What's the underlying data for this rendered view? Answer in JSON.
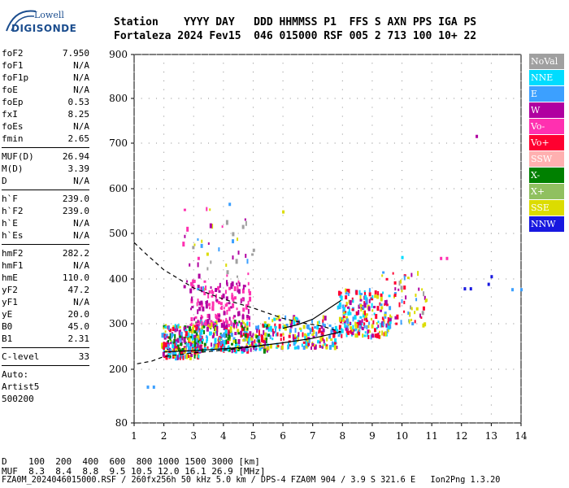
{
  "logo": {
    "top": "Lowell",
    "bottom": "DIGISONDE"
  },
  "header": {
    "labels": "Station    YYYY DAY   DDD HHMMSS P1  FFS S AXN PPS IGA PS",
    "values": "Fortaleza 2024 Fev15  046 015000 RSF 005 2 713 100 10+ 22"
  },
  "params": [
    {
      "name": "foF2",
      "value": "7.950"
    },
    {
      "name": "foF1",
      "value": "N/A"
    },
    {
      "name": "foF1p",
      "value": "N/A"
    },
    {
      "name": "foE",
      "value": "N/A"
    },
    {
      "name": "foEp",
      "value": "0.53"
    },
    {
      "name": "fxI",
      "value": "8.25"
    },
    {
      "name": "foEs",
      "value": "N/A"
    },
    {
      "name": "fmin",
      "value": "2.65"
    },
    {
      "name": "MUF(D)",
      "value": "26.94",
      "sep_before": true
    },
    {
      "name": "M(D)",
      "value": "3.39"
    },
    {
      "name": "D",
      "value": "N/A"
    },
    {
      "name": "h`F",
      "value": "239.0",
      "sep_before": true
    },
    {
      "name": "h`F2",
      "value": "239.0"
    },
    {
      "name": "h`E",
      "value": "N/A"
    },
    {
      "name": "h`Es",
      "value": "N/A"
    },
    {
      "name": "hmF2",
      "value": "282.2",
      "sep_before": true
    },
    {
      "name": "hmF1",
      "value": "N/A"
    },
    {
      "name": "hmE",
      "value": "110.0"
    },
    {
      "name": "yF2",
      "value": "47.2"
    },
    {
      "name": "yF1",
      "value": "N/A"
    },
    {
      "name": "yE",
      "value": "20.0"
    },
    {
      "name": "B0",
      "value": "45.0"
    },
    {
      "name": "B1",
      "value": "2.31"
    },
    {
      "name": "C-level",
      "value": "33",
      "sep_before": true
    }
  ],
  "autoscaling": {
    "line1": "Auto:",
    "line2": "Artist5",
    "line3": "500200"
  },
  "legend": [
    {
      "label": "NoVal",
      "color": "#a0a0a0"
    },
    {
      "label": "NNE",
      "color": "#00dcff"
    },
    {
      "label": "E",
      "color": "#3ca0ff"
    },
    {
      "label": "W",
      "color": "#b000a0"
    },
    {
      "label": "Vo-",
      "color": "#ff30b0"
    },
    {
      "label": "Vo+",
      "color": "#ff0030"
    },
    {
      "label": "SSW",
      "color": "#ffb0b0"
    },
    {
      "label": "X-",
      "color": "#008000"
    },
    {
      "label": "X+",
      "color": "#90c060"
    },
    {
      "label": "SSE",
      "color": "#dcdc00"
    },
    {
      "label": "NNW",
      "color": "#1818e0"
    }
  ],
  "footer": {
    "d_line": "D    100  200  400  600  800 1000 1500 3000 [km]",
    "muf_line": "MUF  8.3  8.4  8.8  9.5 10.5 12.0 16.1 26.9 [MHz]",
    "info_line": "FZA0M_2024046015000.RSF / 260fx256h 50 kHz 5.0 km / DPS-4 FZA0M 904 / 3.9 S 321.6 E   Ion2Png 1.3.20"
  },
  "chart_data": {
    "type": "scatter",
    "xlim": [
      1,
      14
    ],
    "ylim": [
      80,
      900
    ],
    "x_ticks": [
      1,
      2,
      3,
      4,
      5,
      6,
      7,
      8,
      9,
      10,
      11,
      12,
      13,
      14
    ],
    "y_ticks": [
      80,
      200,
      300,
      400,
      500,
      600,
      700,
      800,
      900
    ],
    "clusters": [
      {
        "x_range": [
          1.9,
          3.2
        ],
        "y_range": [
          230,
          300
        ],
        "colors": [
          "W",
          "Vo+",
          "E",
          "NNE",
          "X-",
          "SSE"
        ],
        "count": 260
      },
      {
        "x_range": [
          3.0,
          5.5
        ],
        "y_range": [
          245,
          310
        ],
        "colors": [
          "E",
          "NNE",
          "W",
          "Vo+",
          "SSE",
          "X-"
        ],
        "count": 300
      },
      {
        "x_range": [
          2.8,
          4.9
        ],
        "y_range": [
          300,
          400
        ],
        "colors": [
          "W",
          "Vo-"
        ],
        "count": 160
      },
      {
        "x_range": [
          5.5,
          7.8
        ],
        "y_range": [
          250,
          320
        ],
        "colors": [
          "E",
          "W",
          "Vo+",
          "SSE",
          "NNE"
        ],
        "count": 180
      },
      {
        "x_range": [
          7.8,
          9.6
        ],
        "y_range": [
          275,
          380
        ],
        "colors": [
          "E",
          "NNE",
          "SSE",
          "W",
          "Vo+"
        ],
        "count": 220
      },
      {
        "x_range": [
          9.3,
          10.8
        ],
        "y_range": [
          300,
          420
        ],
        "colors": [
          "NoVal",
          "SSE",
          "E",
          "W",
          "Vo+"
        ],
        "count": 60
      },
      {
        "x_range": [
          2.6,
          5.0
        ],
        "y_range": [
          380,
          560
        ],
        "colors": [
          "W",
          "Vo-",
          "E",
          "SSE",
          "NoVal"
        ],
        "count": 50
      }
    ],
    "isolated_points": [
      {
        "x": 12.5,
        "y": 715,
        "color": "W"
      },
      {
        "x": 11.3,
        "y": 445,
        "color": "Vo-"
      },
      {
        "x": 11.5,
        "y": 445,
        "color": "Vo-"
      },
      {
        "x": 12.1,
        "y": 378,
        "color": "NNW"
      },
      {
        "x": 12.3,
        "y": 378,
        "color": "NNW"
      },
      {
        "x": 13.0,
        "y": 405,
        "color": "NNW"
      },
      {
        "x": 12.9,
        "y": 388,
        "color": "NNW"
      },
      {
        "x": 13.7,
        "y": 376,
        "color": "E"
      },
      {
        "x": 14.0,
        "y": 376,
        "color": "E"
      },
      {
        "x": 1.45,
        "y": 160,
        "color": "E"
      },
      {
        "x": 1.65,
        "y": 160,
        "color": "E"
      },
      {
        "x": 4.2,
        "y": 565,
        "color": "E"
      },
      {
        "x": 6.0,
        "y": 548,
        "color": "SSE"
      },
      {
        "x": 10.0,
        "y": 447,
        "color": "NNE"
      }
    ],
    "dashed_profile": {
      "x": [
        1.0,
        1.4,
        2.0,
        3.0,
        4.0,
        5.0,
        6.0,
        6.8,
        7.3,
        7.95
      ],
      "y": [
        480,
        455,
        420,
        380,
        355,
        335,
        312,
        300,
        295,
        282
      ]
    },
    "solid_profile_lower": {
      "x": [
        2.0,
        3.0,
        4.0,
        5.0,
        6.0,
        7.0,
        7.95
      ],
      "y": [
        238,
        241,
        245,
        250,
        258,
        268,
        282
      ]
    },
    "solid_profile_upper": {
      "x": [
        6.0,
        6.5,
        7.0,
        7.5,
        7.95
      ],
      "y": [
        290,
        298,
        310,
        332,
        352
      ]
    },
    "dashed_lower": {
      "x": [
        1.1,
        1.6,
        2.0,
        3.0,
        4.0,
        5.0,
        5.4
      ],
      "y": [
        212,
        218,
        228,
        236,
        242,
        249,
        254
      ]
    }
  }
}
